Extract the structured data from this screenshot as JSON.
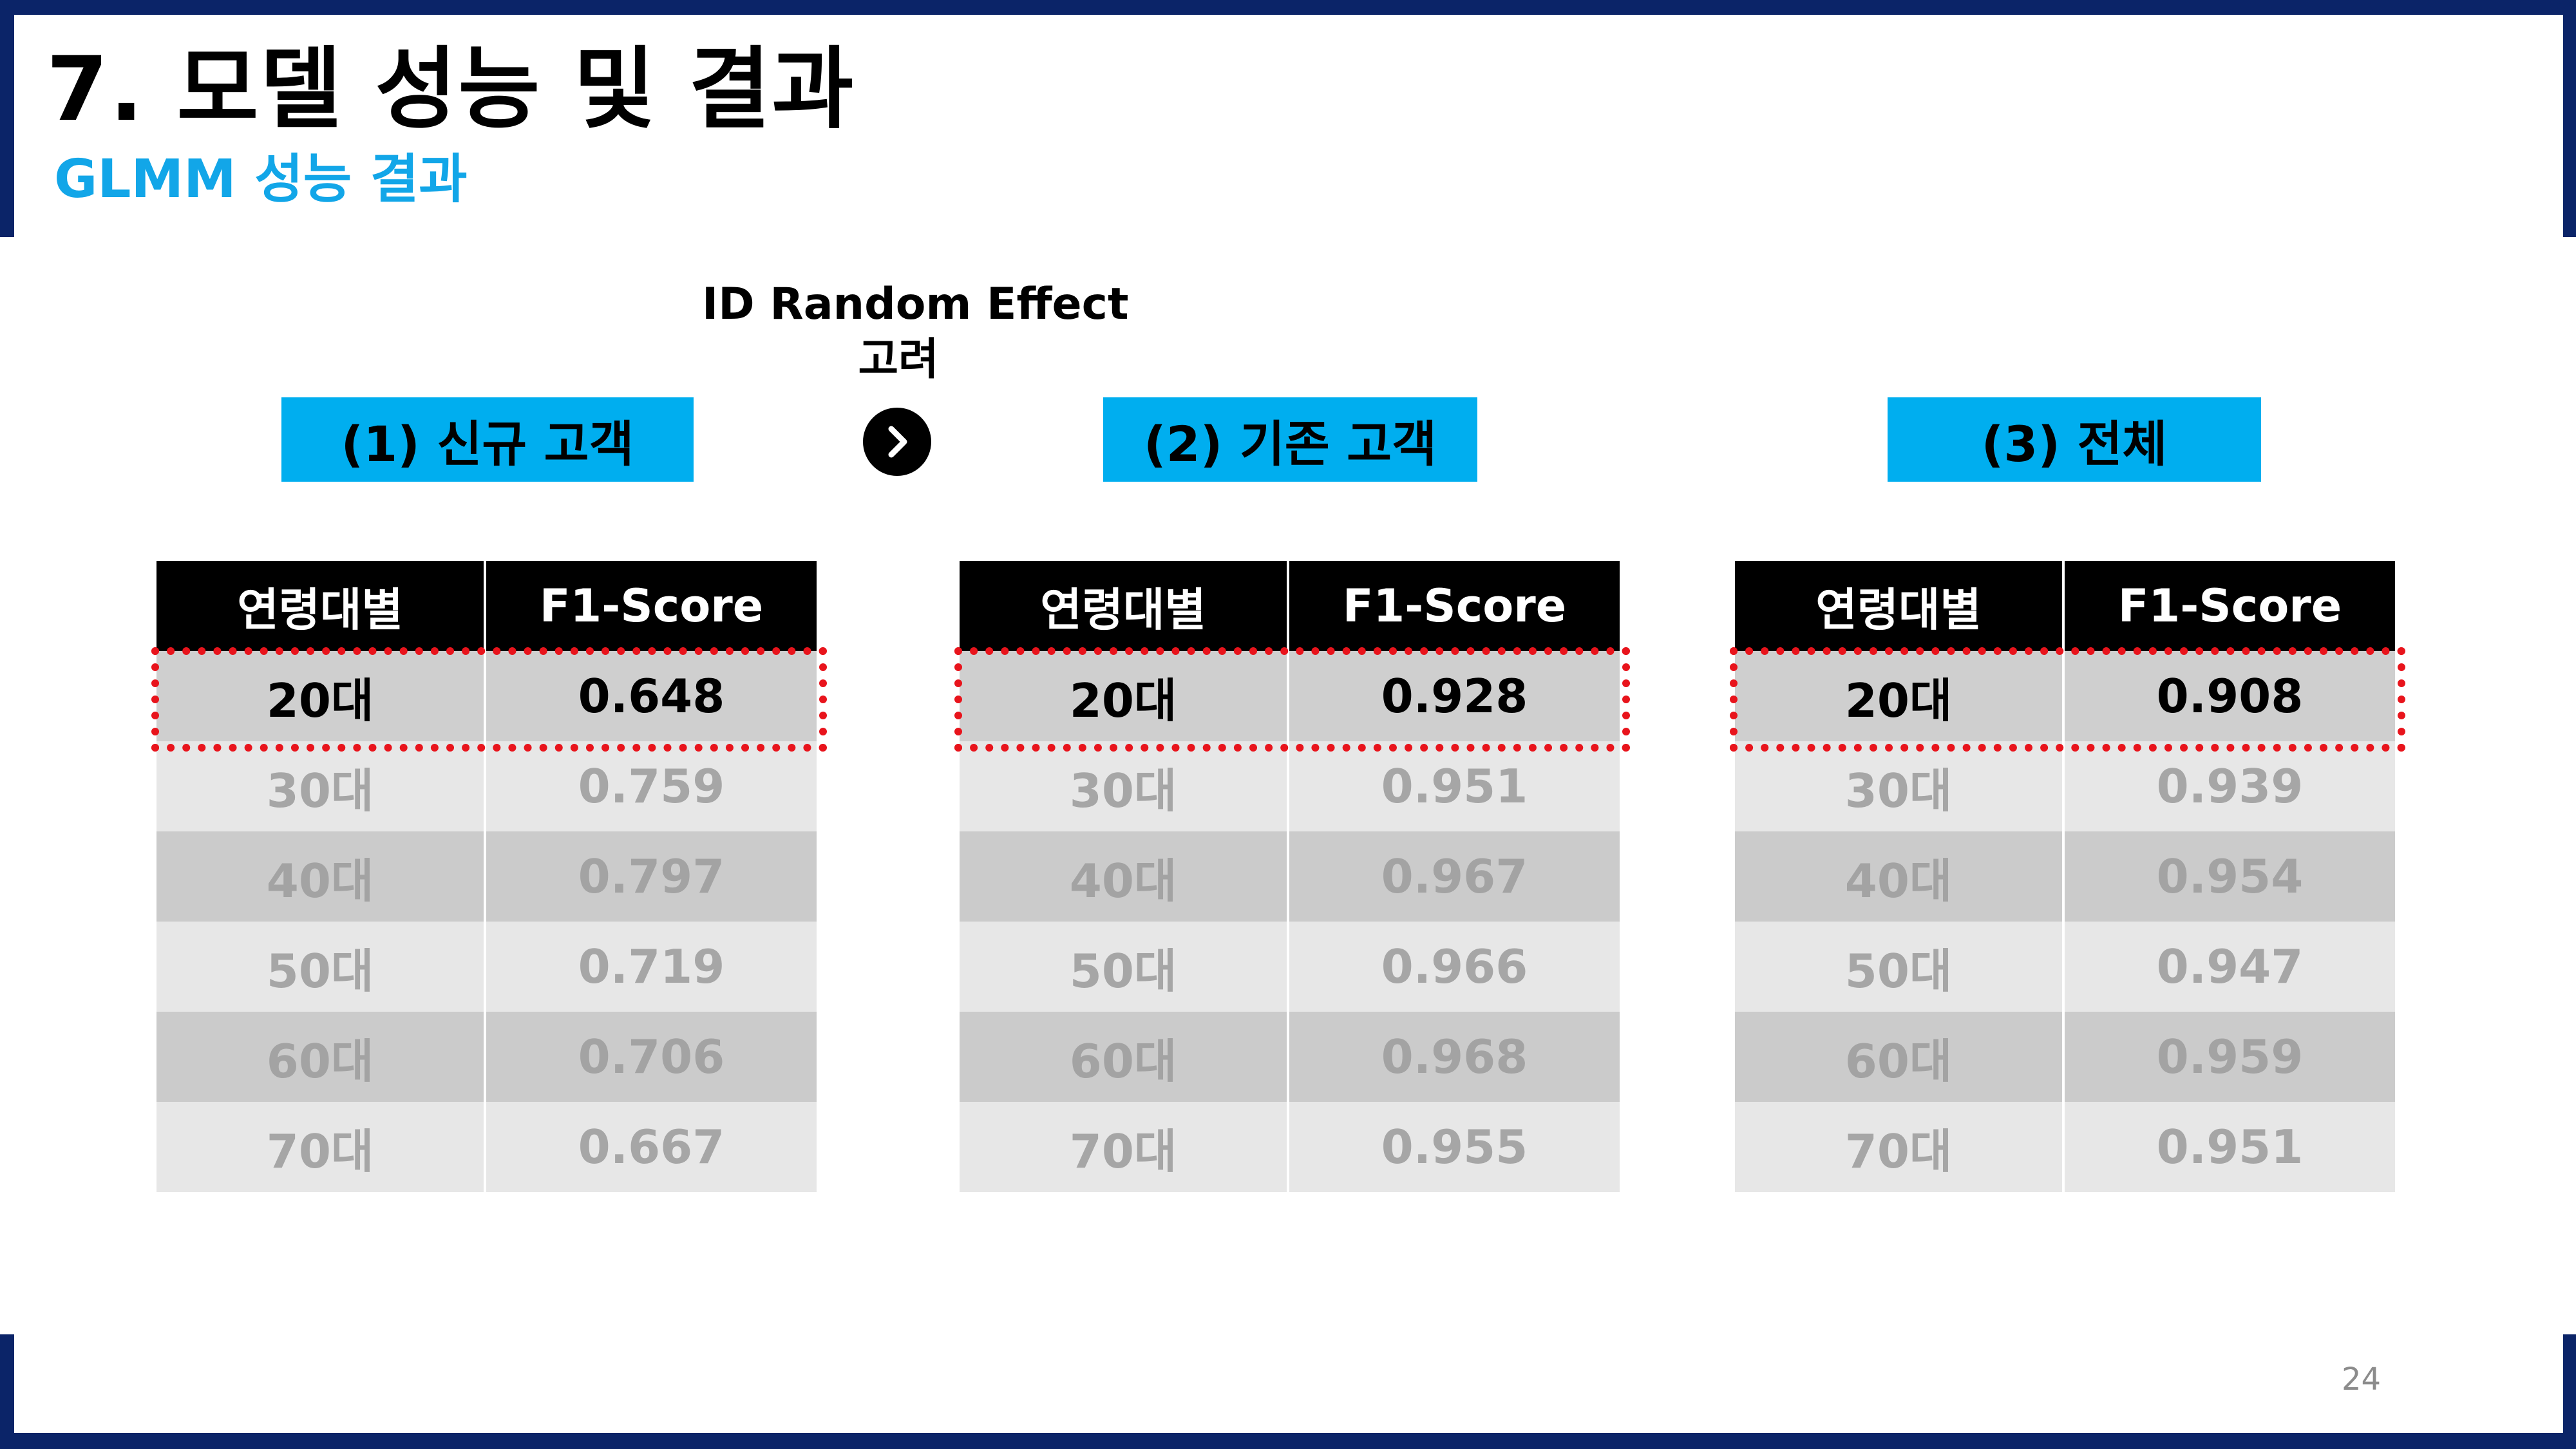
{
  "header": {
    "title": "7. 모델 성능 및 결과",
    "subtitle": "GLMM 성능 결과"
  },
  "annotation": {
    "line1": "ID Random Effect",
    "line2": "고려"
  },
  "arrow_icon": "chevron-right-circle-icon",
  "sections": [
    {
      "label": "(1) 신규 고객"
    },
    {
      "label": "(2) 기존 고객"
    },
    {
      "label": "(3) 전체"
    }
  ],
  "tables": [
    {
      "headers": [
        "연령대별",
        "F1-Score"
      ],
      "rows": [
        {
          "age": "20대",
          "score": "0.648"
        },
        {
          "age": "30대",
          "score": "0.759"
        },
        {
          "age": "40대",
          "score": "0.797"
        },
        {
          "age": "50대",
          "score": "0.719"
        },
        {
          "age": "60대",
          "score": "0.706"
        },
        {
          "age": "70대",
          "score": "0.667"
        }
      ]
    },
    {
      "headers": [
        "연령대별",
        "F1-Score"
      ],
      "rows": [
        {
          "age": "20대",
          "score": "0.928"
        },
        {
          "age": "30대",
          "score": "0.951"
        },
        {
          "age": "40대",
          "score": "0.967"
        },
        {
          "age": "50대",
          "score": "0.966"
        },
        {
          "age": "60대",
          "score": "0.968"
        },
        {
          "age": "70대",
          "score": "0.955"
        }
      ]
    },
    {
      "headers": [
        "연령대별",
        "F1-Score"
      ],
      "rows": [
        {
          "age": "20대",
          "score": "0.908"
        },
        {
          "age": "30대",
          "score": "0.939"
        },
        {
          "age": "40대",
          "score": "0.954"
        },
        {
          "age": "50대",
          "score": "0.947"
        },
        {
          "age": "60대",
          "score": "0.959"
        },
        {
          "age": "70대",
          "score": "0.951"
        }
      ]
    }
  ],
  "highlighted_row": "20대",
  "colors": {
    "frame": "#0b2468",
    "accent": "#00aeef",
    "subtitle": "#12a6e8",
    "highlight_border": "#e8141c"
  },
  "page_number": "24"
}
